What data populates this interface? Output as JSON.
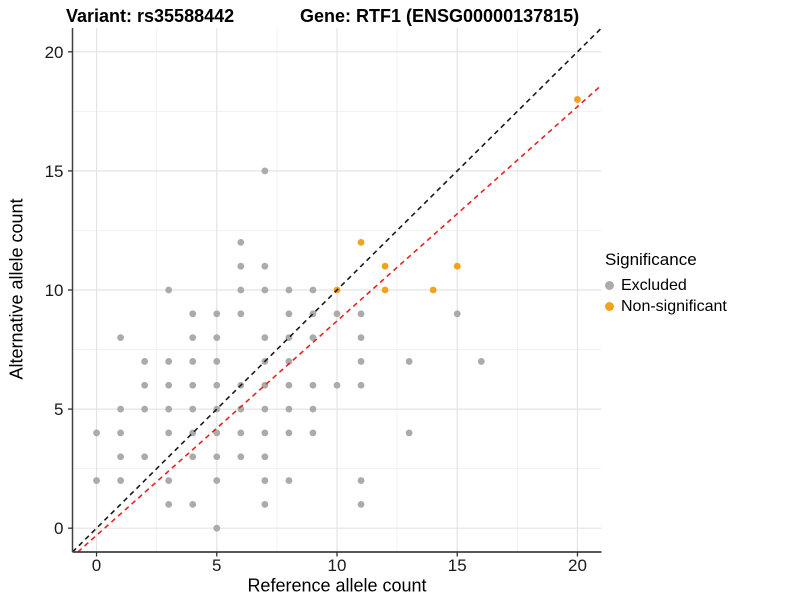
{
  "title": {
    "variant": "Variant: rs35588442",
    "gene": "Gene: RTF1 (ENSG00000137815)"
  },
  "legend": {
    "title": "Significance",
    "items": [
      {
        "label": "Excluded",
        "color": "#ABABAB"
      },
      {
        "label": "Non-significant",
        "color": "#F5A01E"
      }
    ]
  },
  "colors": {
    "background": "#FFFFFF",
    "major_grid": "#E4E4E4",
    "minor_grid": "#F1F1F1",
    "axis_line": "#404040",
    "tick_text": "#1A1A1A",
    "identity_line": "#1A1A1A",
    "fitted_line": "#E62323",
    "excluded_point": "#ABABAB",
    "nonsignificant_point": "#F5A01E"
  },
  "chart_data": {
    "type": "scatter",
    "xlabel": "Reference allele count",
    "ylabel": "Alternative allele count",
    "xlim": [
      -1,
      21
    ],
    "ylim": [
      -1,
      21
    ],
    "x_ticks": [
      0,
      5,
      10,
      15,
      20
    ],
    "y_ticks": [
      0,
      5,
      10,
      15,
      20
    ],
    "minor_ticks": [
      2.5,
      7.5,
      12.5,
      17.5
    ],
    "grid": true,
    "legend_position": "right",
    "series": [
      {
        "name": "Excluded",
        "color": "#ABABAB",
        "points": [
          [
            0,
            2
          ],
          [
            0,
            4
          ],
          [
            1,
            2
          ],
          [
            1,
            3
          ],
          [
            1,
            4
          ],
          [
            1,
            5
          ],
          [
            1,
            8
          ],
          [
            2,
            3
          ],
          [
            2,
            5
          ],
          [
            2,
            6
          ],
          [
            2,
            7
          ],
          [
            3,
            1
          ],
          [
            3,
            2
          ],
          [
            3,
            4
          ],
          [
            3,
            5
          ],
          [
            3,
            6
          ],
          [
            3,
            7
          ],
          [
            3,
            10
          ],
          [
            4,
            1
          ],
          [
            4,
            3
          ],
          [
            4,
            4
          ],
          [
            4,
            5
          ],
          [
            4,
            6
          ],
          [
            4,
            7
          ],
          [
            4,
            8
          ],
          [
            4,
            9
          ],
          [
            5,
            0
          ],
          [
            5,
            2
          ],
          [
            5,
            3
          ],
          [
            5,
            4
          ],
          [
            5,
            5
          ],
          [
            5,
            6
          ],
          [
            5,
            7
          ],
          [
            5,
            8
          ],
          [
            5,
            9
          ],
          [
            6,
            3
          ],
          [
            6,
            4
          ],
          [
            6,
            5
          ],
          [
            6,
            6
          ],
          [
            6,
            9
          ],
          [
            6,
            10
          ],
          [
            6,
            11
          ],
          [
            6,
            12
          ],
          [
            7,
            1
          ],
          [
            7,
            2
          ],
          [
            7,
            3
          ],
          [
            7,
            4
          ],
          [
            7,
            5
          ],
          [
            7,
            6
          ],
          [
            7,
            7
          ],
          [
            7,
            8
          ],
          [
            7,
            10
          ],
          [
            7,
            11
          ],
          [
            7,
            15
          ],
          [
            8,
            2
          ],
          [
            8,
            4
          ],
          [
            8,
            5
          ],
          [
            8,
            6
          ],
          [
            8,
            7
          ],
          [
            8,
            8
          ],
          [
            8,
            9
          ],
          [
            8,
            10
          ],
          [
            9,
            4
          ],
          [
            9,
            5
          ],
          [
            9,
            6
          ],
          [
            9,
            8
          ],
          [
            9,
            9
          ],
          [
            9,
            10
          ],
          [
            10,
            6
          ],
          [
            10,
            9
          ],
          [
            11,
            1
          ],
          [
            11,
            2
          ],
          [
            11,
            6
          ],
          [
            11,
            7
          ],
          [
            11,
            8
          ],
          [
            11,
            9
          ],
          [
            13,
            4
          ],
          [
            13,
            7
          ],
          [
            15,
            9
          ],
          [
            16,
            7
          ]
        ]
      },
      {
        "name": "Non-significant",
        "color": "#F5A01E",
        "points": [
          [
            10,
            10
          ],
          [
            11,
            12
          ],
          [
            12,
            10
          ],
          [
            12,
            11
          ],
          [
            14,
            10
          ],
          [
            15,
            11
          ],
          [
            20,
            18
          ]
        ]
      }
    ],
    "reference_lines": [
      {
        "name": "identity-line",
        "color": "#1A1A1A",
        "slope": 1.0,
        "intercept": 0.0,
        "dash": "5 4"
      },
      {
        "name": "fitted-ratio-line",
        "color": "#E62323",
        "slope": 0.9,
        "intercept": -0.3,
        "dash": "5 4"
      }
    ]
  }
}
